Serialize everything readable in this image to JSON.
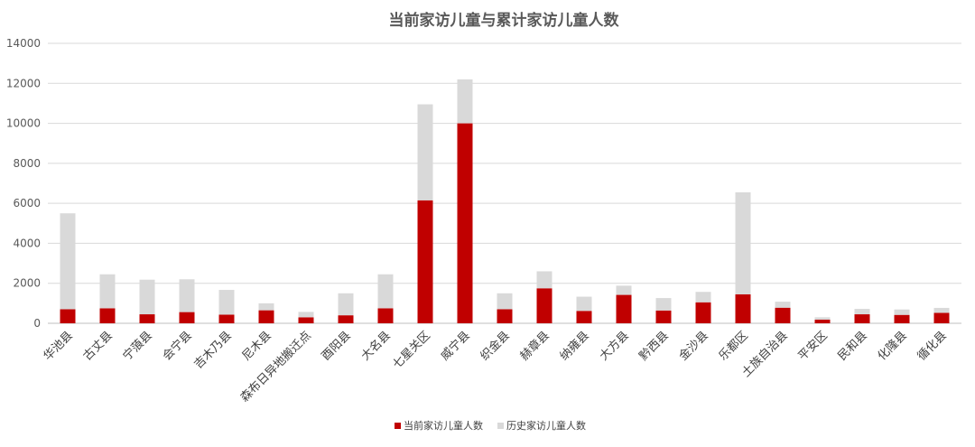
{
  "chart_data": {
    "type": "bar",
    "stacked": true,
    "title": "当前家访儿童与累计家访儿童人数",
    "xlabel": "",
    "ylabel": "",
    "ylim": [
      0,
      14000
    ],
    "yticks": [
      0,
      2000,
      4000,
      6000,
      8000,
      10000,
      12000,
      14000
    ],
    "grid": true,
    "legend_position": "bottom",
    "categories": [
      "华池县",
      "古丈县",
      "宁蒗县",
      "会宁县",
      "吉木乃县",
      "尼木县",
      "森布日异地搬迁点",
      "酉阳县",
      "大名县",
      "七星关区",
      "威宁县",
      "织金县",
      "赫章县",
      "纳雍县",
      "大方县",
      "黔西县",
      "金沙县",
      "乐都区",
      "土族自治县",
      "平安区",
      "民和县",
      "化隆县",
      "循化县"
    ],
    "series": [
      {
        "name": "当前家访儿童人数",
        "color": "#c00000",
        "values": [
          700,
          750,
          450,
          560,
          430,
          650,
          300,
          400,
          750,
          6150,
          10000,
          700,
          1750,
          620,
          1420,
          640,
          1050,
          1450,
          780,
          180,
          450,
          420,
          520
        ]
      },
      {
        "name": "历史家访儿童人数",
        "color": "#d9d9d9",
        "values": [
          4800,
          1700,
          1730,
          1640,
          1240,
          350,
          270,
          1100,
          1700,
          4800,
          2200,
          800,
          850,
          710,
          460,
          620,
          520,
          5100,
          300,
          120,
          270,
          270,
          250
        ]
      }
    ]
  }
}
